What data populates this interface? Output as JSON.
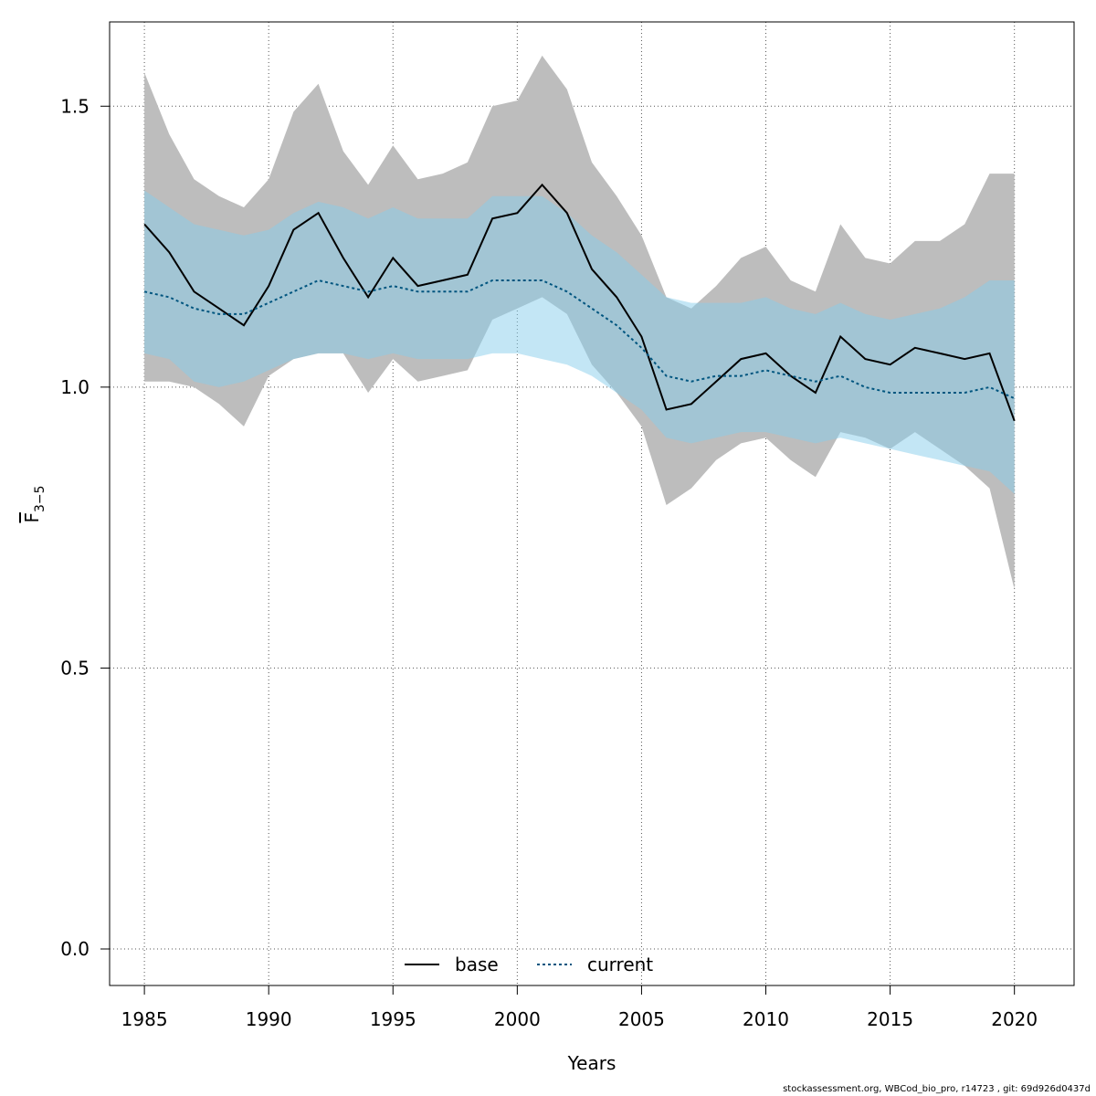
{
  "chart_data": {
    "type": "line",
    "xlabel": "Years",
    "ylabel_main": "F",
    "ylabel_sub": "3−5",
    "xlim": [
      1983.6,
      2022.4
    ],
    "ylim": [
      -0.065,
      1.65
    ],
    "x_ticks": [
      "1985",
      "1990",
      "1995",
      "2000",
      "2005",
      "2010",
      "2015",
      "2020"
    ],
    "y_ticks": [
      "0.0",
      "0.5",
      "1.0",
      "1.5"
    ],
    "grid": true,
    "legend_position": "bottom",
    "x": [
      1985,
      1986,
      1987,
      1988,
      1989,
      1990,
      1991,
      1992,
      1993,
      1994,
      1995,
      1996,
      1997,
      1998,
      1999,
      2000,
      2001,
      2002,
      2003,
      2004,
      2005,
      2006,
      2007,
      2008,
      2009,
      2010,
      2011,
      2012,
      2013,
      2014,
      2015,
      2016,
      2017,
      2018,
      2019,
      2020
    ],
    "series": [
      {
        "name": "base",
        "color": "#000000",
        "band_color": "#bdbdbd",
        "values": [
          1.29,
          1.24,
          1.17,
          1.14,
          1.11,
          1.18,
          1.28,
          1.31,
          1.23,
          1.16,
          1.23,
          1.18,
          1.19,
          1.2,
          1.3,
          1.31,
          1.36,
          1.31,
          1.21,
          1.16,
          1.09,
          0.96,
          0.97,
          1.01,
          1.05,
          1.06,
          1.02,
          0.99,
          1.09,
          1.05,
          1.04,
          1.07,
          1.06,
          1.05,
          1.06,
          0.94
        ],
        "lower": [
          1.01,
          1.01,
          1.0,
          0.97,
          0.93,
          1.02,
          1.05,
          1.06,
          1.06,
          0.99,
          1.05,
          1.01,
          1.02,
          1.03,
          1.12,
          1.14,
          1.16,
          1.13,
          1.04,
          0.99,
          0.93,
          0.79,
          0.82,
          0.87,
          0.9,
          0.91,
          0.87,
          0.84,
          0.92,
          0.91,
          0.89,
          0.92,
          0.89,
          0.86,
          0.82,
          0.64
        ],
        "upper": [
          1.56,
          1.45,
          1.37,
          1.34,
          1.32,
          1.37,
          1.49,
          1.54,
          1.42,
          1.36,
          1.43,
          1.37,
          1.38,
          1.4,
          1.5,
          1.51,
          1.59,
          1.53,
          1.4,
          1.34,
          1.27,
          1.16,
          1.14,
          1.18,
          1.23,
          1.25,
          1.19,
          1.17,
          1.29,
          1.23,
          1.22,
          1.26,
          1.26,
          1.29,
          1.38,
          1.38
        ]
      },
      {
        "name": "current",
        "color": "#00557f",
        "band_color": "rgba(135,206,235,0.5)",
        "values": [
          1.17,
          1.16,
          1.14,
          1.13,
          1.13,
          1.15,
          1.17,
          1.19,
          1.18,
          1.17,
          1.18,
          1.17,
          1.17,
          1.17,
          1.19,
          1.19,
          1.19,
          1.17,
          1.14,
          1.11,
          1.07,
          1.02,
          1.01,
          1.02,
          1.02,
          1.03,
          1.02,
          1.01,
          1.02,
          1.0,
          0.99,
          0.99,
          0.99,
          0.99,
          1.0,
          0.98
        ],
        "lower": [
          1.06,
          1.05,
          1.01,
          1.0,
          1.01,
          1.03,
          1.05,
          1.06,
          1.06,
          1.05,
          1.06,
          1.05,
          1.05,
          1.05,
          1.06,
          1.06,
          1.05,
          1.04,
          1.02,
          0.99,
          0.96,
          0.91,
          0.9,
          0.91,
          0.92,
          0.92,
          0.91,
          0.9,
          0.91,
          0.9,
          0.89,
          0.88,
          0.87,
          0.86,
          0.85,
          0.81
        ],
        "upper": [
          1.35,
          1.32,
          1.29,
          1.28,
          1.27,
          1.28,
          1.31,
          1.33,
          1.32,
          1.3,
          1.32,
          1.3,
          1.3,
          1.3,
          1.34,
          1.34,
          1.34,
          1.31,
          1.27,
          1.24,
          1.2,
          1.16,
          1.15,
          1.15,
          1.15,
          1.16,
          1.14,
          1.13,
          1.15,
          1.13,
          1.12,
          1.13,
          1.14,
          1.16,
          1.19,
          1.19
        ]
      }
    ]
  },
  "footer": "stockassessment.org, WBCod_bio_pro, r14723 , git: 69d926d0437d"
}
